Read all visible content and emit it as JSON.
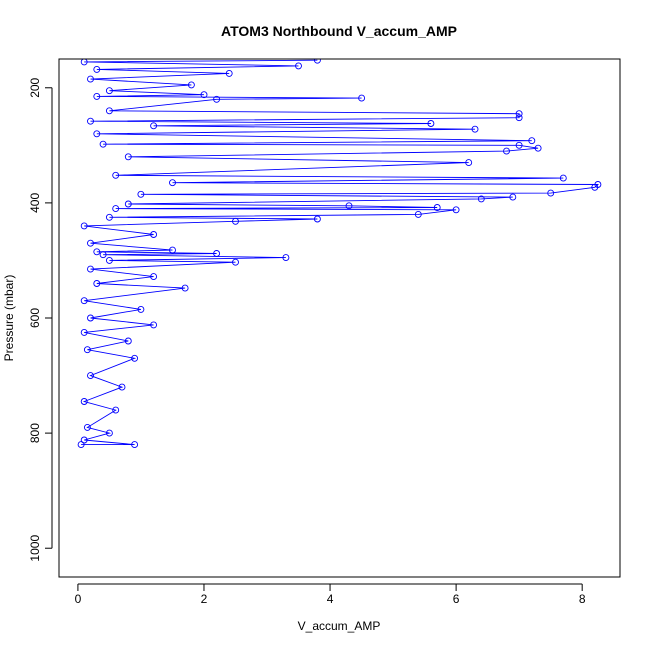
{
  "chart_data": {
    "type": "line",
    "title": "ATOM3 Northbound V_accum_AMP",
    "xlabel": "V_accum_AMP",
    "ylabel": "Pressure (mbar)",
    "xlim": [
      -0.3,
      8.6
    ],
    "ylim": [
      1050,
      150
    ],
    "y_reversed": true,
    "x_ticks": [
      0,
      2,
      4,
      6,
      8
    ],
    "y_ticks": [
      200,
      400,
      600,
      800,
      1000
    ],
    "x_tick_labels": [
      "0",
      "2",
      "4",
      "6",
      "8"
    ],
    "y_tick_labels": [
      "200",
      "400",
      "600",
      "800",
      "1000"
    ],
    "grid": false,
    "legend": "none",
    "series": [
      {
        "color": "#0000ff",
        "marker": "open-circle",
        "line": true,
        "points": [
          {
            "x": 0.05,
            "y": 820
          },
          {
            "x": 0.9,
            "y": 820
          },
          {
            "x": 0.1,
            "y": 812
          },
          {
            "x": 0.5,
            "y": 800
          },
          {
            "x": 0.15,
            "y": 790
          },
          {
            "x": 0.6,
            "y": 760
          },
          {
            "x": 0.1,
            "y": 745
          },
          {
            "x": 0.7,
            "y": 720
          },
          {
            "x": 0.2,
            "y": 700
          },
          {
            "x": 0.9,
            "y": 670
          },
          {
            "x": 0.15,
            "y": 655
          },
          {
            "x": 0.8,
            "y": 640
          },
          {
            "x": 0.1,
            "y": 625
          },
          {
            "x": 1.2,
            "y": 612
          },
          {
            "x": 0.2,
            "y": 600
          },
          {
            "x": 1.0,
            "y": 585
          },
          {
            "x": 0.1,
            "y": 570
          },
          {
            "x": 1.7,
            "y": 548
          },
          {
            "x": 0.3,
            "y": 540
          },
          {
            "x": 1.2,
            "y": 528
          },
          {
            "x": 0.2,
            "y": 515
          },
          {
            "x": 2.5,
            "y": 503
          },
          {
            "x": 0.5,
            "y": 500
          },
          {
            "x": 3.3,
            "y": 495
          },
          {
            "x": 0.4,
            "y": 490
          },
          {
            "x": 2.2,
            "y": 488
          },
          {
            "x": 0.3,
            "y": 485
          },
          {
            "x": 1.5,
            "y": 482
          },
          {
            "x": 0.2,
            "y": 470
          },
          {
            "x": 1.2,
            "y": 455
          },
          {
            "x": 0.1,
            "y": 440
          },
          {
            "x": 2.5,
            "y": 432
          },
          {
            "x": 3.8,
            "y": 428
          },
          {
            "x": 0.5,
            "y": 425
          },
          {
            "x": 5.4,
            "y": 420
          },
          {
            "x": 6.0,
            "y": 412
          },
          {
            "x": 0.6,
            "y": 410
          },
          {
            "x": 5.7,
            "y": 408
          },
          {
            "x": 4.3,
            "y": 405
          },
          {
            "x": 0.8,
            "y": 402
          },
          {
            "x": 6.4,
            "y": 393
          },
          {
            "x": 6.9,
            "y": 390
          },
          {
            "x": 1.0,
            "y": 385
          },
          {
            "x": 7.5,
            "y": 383
          },
          {
            "x": 8.2,
            "y": 373
          },
          {
            "x": 8.25,
            "y": 368
          },
          {
            "x": 1.5,
            "y": 365
          },
          {
            "x": 7.7,
            "y": 357
          },
          {
            "x": 0.6,
            "y": 352
          },
          {
            "x": 6.2,
            "y": 330
          },
          {
            "x": 0.8,
            "y": 320
          },
          {
            "x": 6.8,
            "y": 310
          },
          {
            "x": 7.3,
            "y": 305
          },
          {
            "x": 7.0,
            "y": 300
          },
          {
            "x": 0.4,
            "y": 298
          },
          {
            "x": 7.2,
            "y": 292
          },
          {
            "x": 0.3,
            "y": 280
          },
          {
            "x": 6.3,
            "y": 272
          },
          {
            "x": 1.2,
            "y": 266
          },
          {
            "x": 5.6,
            "y": 262
          },
          {
            "x": 0.2,
            "y": 258
          },
          {
            "x": 7.0,
            "y": 252
          },
          {
            "x": 7.0,
            "y": 245
          },
          {
            "x": 0.5,
            "y": 240
          },
          {
            "x": 2.2,
            "y": 220
          },
          {
            "x": 4.5,
            "y": 218
          },
          {
            "x": 0.3,
            "y": 215
          },
          {
            "x": 2.0,
            "y": 212
          },
          {
            "x": 0.5,
            "y": 205
          },
          {
            "x": 1.8,
            "y": 195
          },
          {
            "x": 0.2,
            "y": 185
          },
          {
            "x": 2.4,
            "y": 175
          },
          {
            "x": 0.3,
            "y": 168
          },
          {
            "x": 3.5,
            "y": 162
          },
          {
            "x": 0.1,
            "y": 155
          },
          {
            "x": 3.8,
            "y": 152
          }
        ]
      }
    ]
  }
}
